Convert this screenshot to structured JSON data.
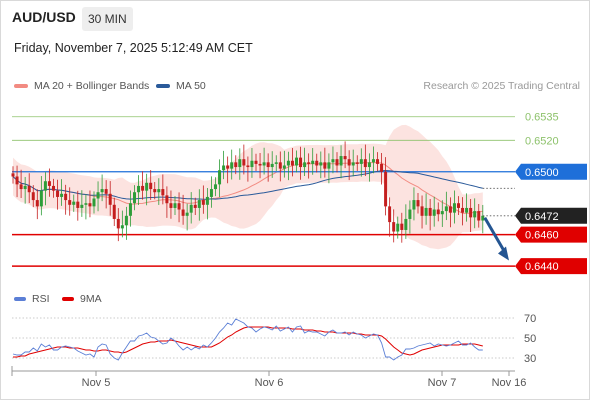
{
  "header": {
    "symbol": "AUD/USD",
    "timeframe": "30 MIN",
    "datetime": "Friday, November 7, 2025 5:12:49 AM CET"
  },
  "legend": {
    "bollinger": "MA 20 + Bollinger Bands",
    "ma50": "MA 50",
    "credit": "Research © 2025 Trading Central",
    "rsi": "RSI",
    "rsi_ma": "9MA"
  },
  "colors": {
    "bollinger": "#f28b82",
    "ma50": "#2a5a9a",
    "resistance": "#8dc26b",
    "pivot": "#1e6fd9",
    "support": "#e00000",
    "candle_up": "#2e9d39",
    "candle_down": "#c41e1e",
    "arrow": "#245592",
    "current": "#222222"
  },
  "chart_data": [
    {
      "type": "candlestick",
      "ylim": [
        0.6428,
        0.6552
      ],
      "x_ticks": [
        "Nov 5",
        "Nov 6",
        "Nov 7",
        "Nov 16"
      ],
      "levels": [
        {
          "label": "0.6535",
          "value": 0.6535,
          "kind": "resistance"
        },
        {
          "label": "0.6520",
          "value": 0.652,
          "kind": "resistance"
        },
        {
          "label": "0.6500",
          "value": 0.65,
          "kind": "pivot"
        },
        {
          "label": "0.6460",
          "value": 0.646,
          "kind": "support"
        },
        {
          "label": "0.6440",
          "value": 0.644,
          "kind": "support"
        }
      ],
      "current_price": {
        "label": "0.6472",
        "value": 0.6472
      },
      "forecast": {
        "from": 0.6472,
        "to": 0.6441
      },
      "close": [
        0.6497,
        0.6492,
        0.6489,
        0.6491,
        0.6487,
        0.6482,
        0.6478,
        0.6488,
        0.6494,
        0.6491,
        0.6488,
        0.6484,
        0.6486,
        0.6482,
        0.6479,
        0.6481,
        0.6477,
        0.6479,
        0.648,
        0.6478,
        0.6483,
        0.6487,
        0.6489,
        0.6486,
        0.6479,
        0.647,
        0.6464,
        0.6466,
        0.6472,
        0.648,
        0.6487,
        0.6491,
        0.6488,
        0.6493,
        0.6489,
        0.6487,
        0.6489,
        0.6485,
        0.648,
        0.6477,
        0.648,
        0.6476,
        0.6472,
        0.6474,
        0.6479,
        0.6477,
        0.6482,
        0.6479,
        0.6484,
        0.6489,
        0.6492,
        0.6501,
        0.6504,
        0.6502,
        0.6506,
        0.6503,
        0.6508,
        0.6504,
        0.6503,
        0.6507,
        0.6505,
        0.6504,
        0.6506,
        0.6503,
        0.6505,
        0.6506,
        0.6502,
        0.6504,
        0.6507,
        0.6504,
        0.6509,
        0.6503,
        0.6506,
        0.6505,
        0.6507,
        0.6504,
        0.6506,
        0.6502,
        0.6506,
        0.6508,
        0.6504,
        0.651,
        0.6508,
        0.6504,
        0.6506,
        0.6505,
        0.6508,
        0.6503,
        0.6506,
        0.6508,
        0.6505,
        0.65,
        0.6478,
        0.6468,
        0.6462,
        0.6467,
        0.6463,
        0.647,
        0.6476,
        0.6482,
        0.6478,
        0.6472,
        0.6477,
        0.6472,
        0.6476,
        0.6473,
        0.6475,
        0.6478,
        0.6474,
        0.648,
        0.6477,
        0.6474,
        0.6477,
        0.6471,
        0.6475,
        0.6469,
        0.6472
      ]
    },
    {
      "type": "line",
      "ylim": [
        20,
        78
      ],
      "y_ticks": [
        "70",
        "50",
        "30"
      ],
      "y_tick_values": [
        70,
        50,
        30
      ],
      "series": [
        {
          "name": "RSI",
          "values": [
            34,
            33,
            33,
            36,
            36,
            40,
            37,
            44,
            41,
            43,
            38,
            38,
            41,
            42,
            41,
            40,
            37,
            35,
            33,
            34,
            31,
            41,
            44,
            43,
            34,
            30,
            28,
            35,
            41,
            47,
            47,
            52,
            53,
            55,
            51,
            50,
            47,
            44,
            45,
            50,
            47,
            42,
            38,
            41,
            38,
            41,
            39,
            43,
            41,
            45,
            50,
            56,
            60,
            65,
            63,
            69,
            67,
            65,
            61,
            60,
            56,
            59,
            61,
            60,
            58,
            62,
            57,
            59,
            61,
            56,
            61,
            62,
            55,
            57,
            56,
            56,
            54,
            52,
            56,
            58,
            55,
            55,
            56,
            53,
            56,
            54,
            53,
            50,
            52,
            54,
            53,
            45,
            31,
            31,
            28,
            31,
            33,
            39,
            39,
            40,
            42,
            43,
            44,
            45,
            42,
            44,
            43,
            42,
            43,
            45,
            47,
            43,
            43,
            45,
            41,
            38,
            38
          ]
        },
        {
          "name": "9MA",
          "values": [
            31,
            31,
            32,
            32,
            34,
            35,
            36,
            37,
            38,
            39,
            40,
            41,
            41,
            41,
            40,
            40,
            40,
            39,
            38,
            38,
            37,
            37,
            38,
            38,
            37,
            36,
            36,
            35,
            36,
            38,
            40,
            42,
            44,
            45,
            46,
            46,
            47,
            47,
            47,
            48,
            47,
            46,
            45,
            44,
            43,
            42,
            41,
            41,
            41,
            41,
            43,
            45,
            48,
            51,
            53,
            56,
            58,
            60,
            61,
            61,
            61,
            61,
            61,
            61,
            60,
            60,
            60,
            60,
            60,
            59,
            59,
            59,
            58,
            58,
            58,
            57,
            57,
            56,
            56,
            56,
            55,
            55,
            55,
            55,
            55,
            54,
            54,
            53,
            53,
            53,
            53,
            52,
            49,
            45,
            41,
            38,
            35,
            34,
            33,
            34,
            36,
            38,
            39,
            40,
            41,
            42,
            43,
            43,
            43,
            43,
            43,
            44,
            44,
            44,
            44,
            43,
            42
          ]
        }
      ]
    }
  ]
}
